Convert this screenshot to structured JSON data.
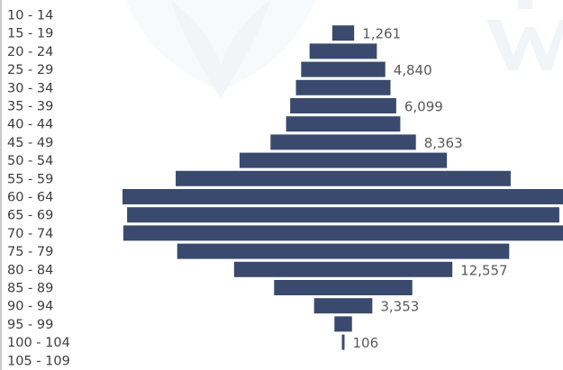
{
  "colors": {
    "bar": "#3a4a6e",
    "background": "#ffffff",
    "watermark": "#b8bfd6"
  },
  "chart_data": {
    "type": "bar",
    "orientation": "horizontal",
    "layout": "centered-pyramid",
    "title": "",
    "xlabel": "",
    "ylabel": "",
    "categories": [
      "10 - 14",
      "15 - 19",
      "20 - 24",
      "25 - 29",
      "30 - 34",
      "35 - 39",
      "40 - 44",
      "45 - 49",
      "50 - 54",
      "55 - 59",
      "60 - 64",
      "65 - 69",
      "70 - 74",
      "75 - 79",
      "80 - 84",
      "85 - 89",
      "90 - 94",
      "95 - 99",
      "100 - 104",
      "105 - 109"
    ],
    "values": [
      0,
      1261,
      3870,
      4840,
      5440,
      6099,
      6570,
      8363,
      11930,
      19270,
      25390,
      24860,
      25300,
      19100,
      12557,
      7950,
      3353,
      1010,
      106,
      0
    ],
    "data_labels": [
      {
        "category": "15 - 19",
        "text": "1,261"
      },
      {
        "category": "25 - 29",
        "text": "4,840"
      },
      {
        "category": "35 - 39",
        "text": "6,099"
      },
      {
        "category": "45 - 49",
        "text": "8,363"
      },
      {
        "category": "80 - 84",
        "text": "12,557"
      },
      {
        "category": "90 - 94",
        "text": "3,353"
      },
      {
        "category": "100 - 104",
        "text": "106"
      }
    ],
    "grid": false,
    "legend": "none"
  }
}
